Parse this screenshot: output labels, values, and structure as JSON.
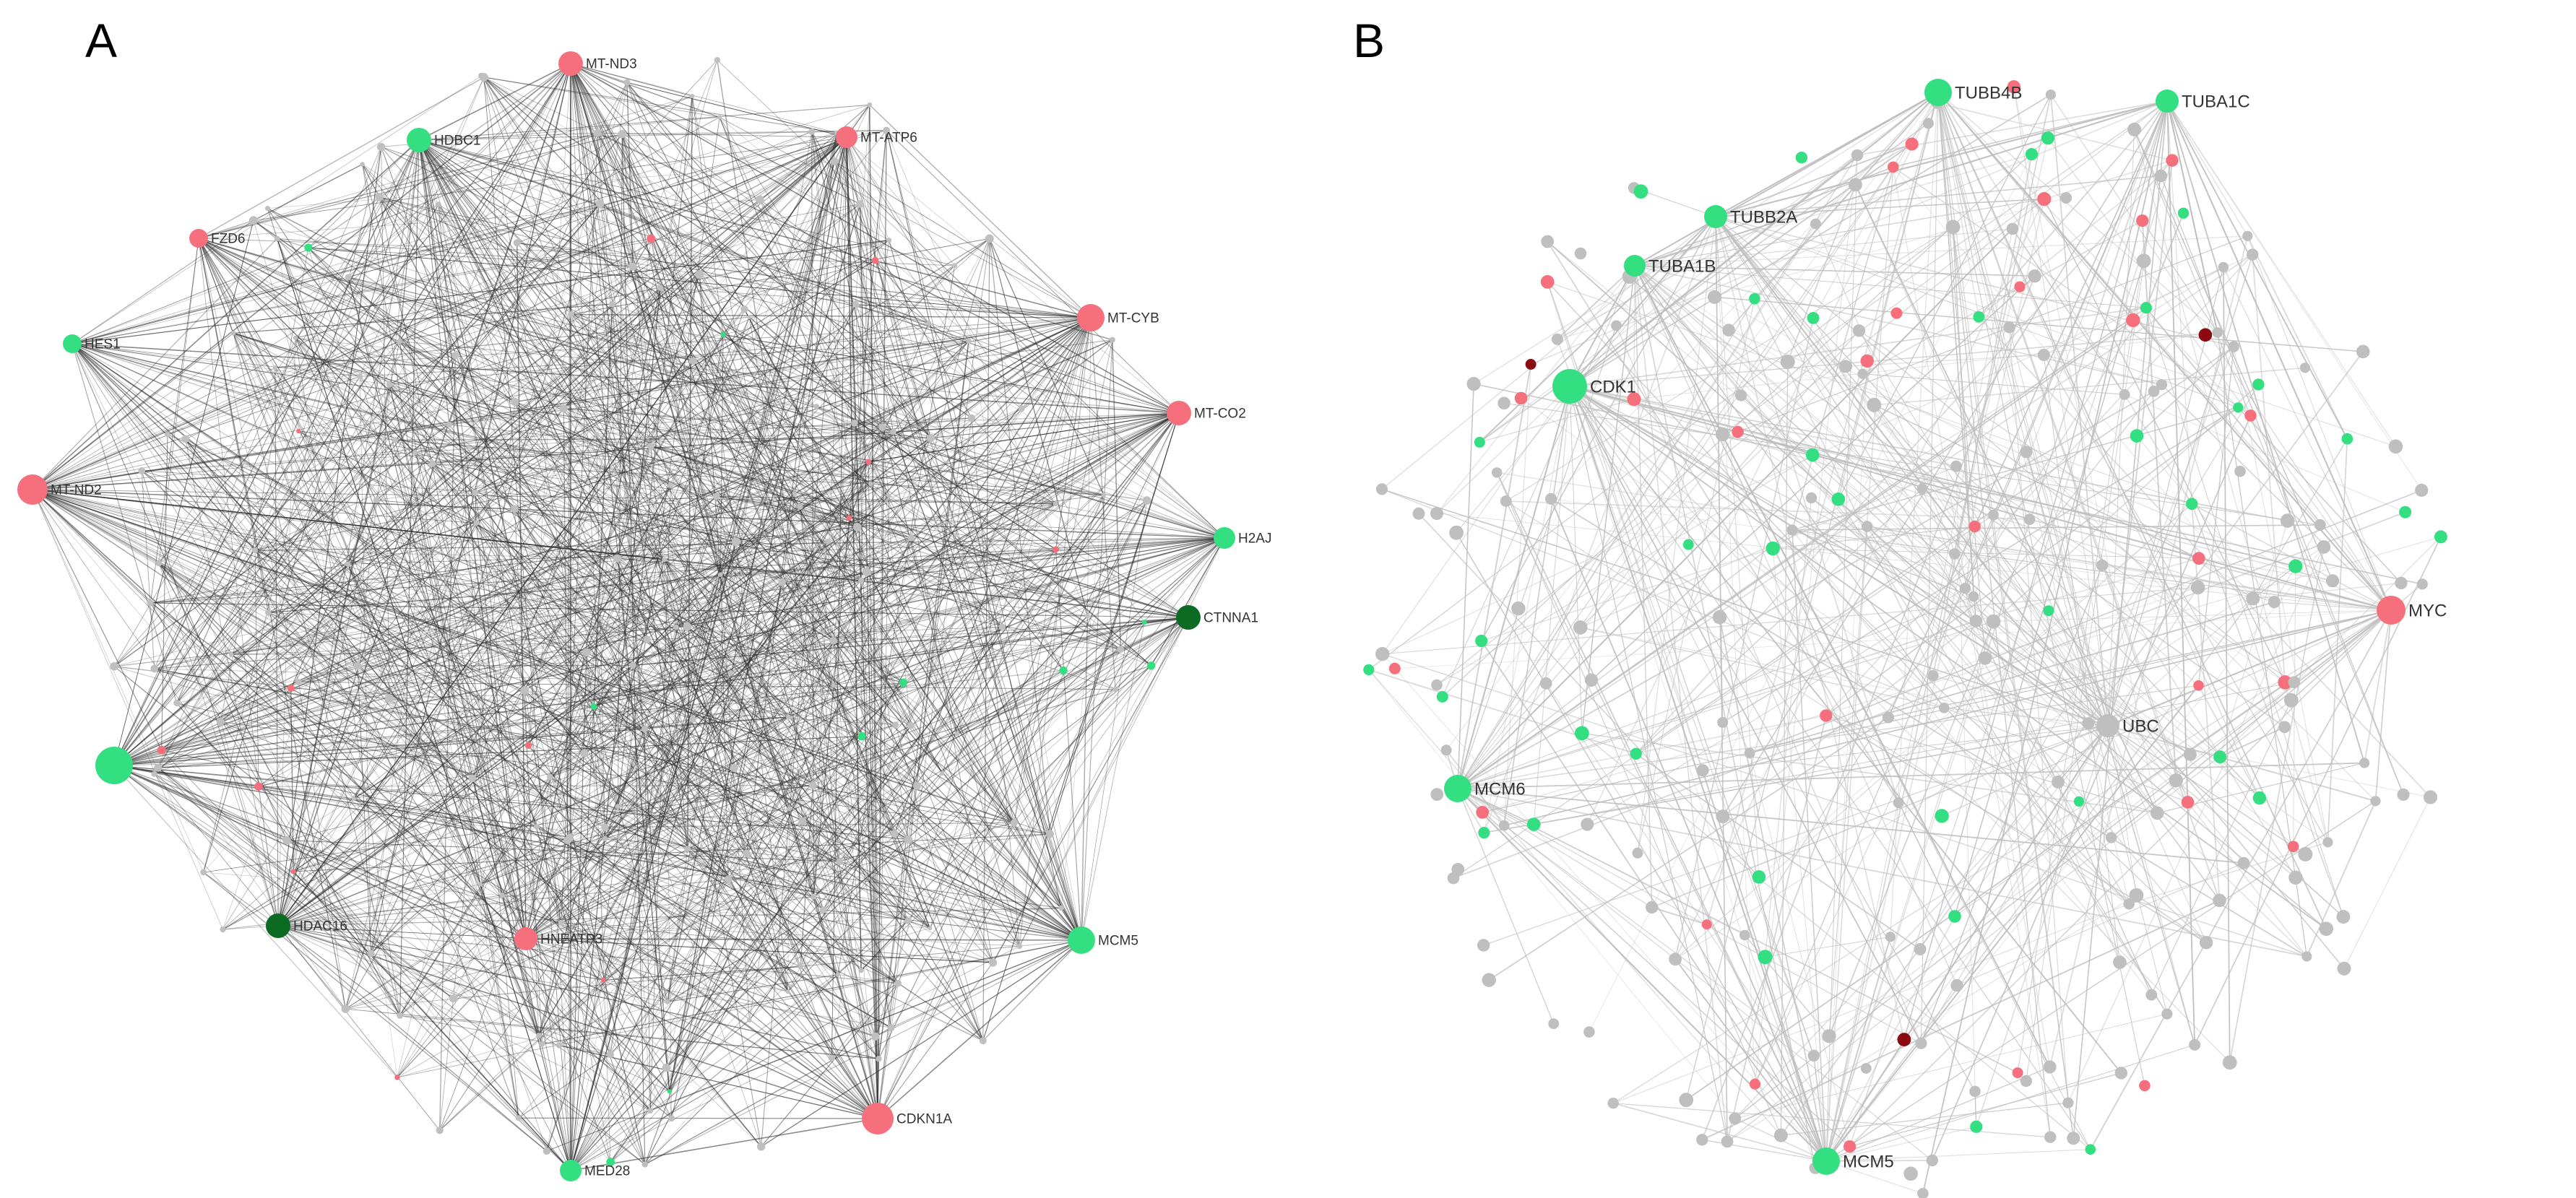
{
  "colors": {
    "up": "#f5707c",
    "down": "#34df82",
    "down_dark": "#0c6b22",
    "up_dark": "#8b0a10",
    "neutral": "#bfbfbf",
    "edge_a": "#2b2b2b",
    "edge_b": "#bdbdbd"
  },
  "panels": [
    {
      "letter": "A",
      "hubs": [
        {
          "label": "MT-ND3",
          "class": "up"
        },
        {
          "label": "HDBC1",
          "class": "down"
        },
        {
          "label": "MT-ATP6",
          "class": "up"
        },
        {
          "label": "FZD6",
          "class": "up"
        },
        {
          "label": "MT-CYB",
          "class": "up"
        },
        {
          "label": "HES1",
          "class": "down"
        },
        {
          "label": "MT-CO2",
          "class": "up"
        },
        {
          "label": "MT-ND2",
          "class": "up"
        },
        {
          "label": "H2AJ",
          "class": "down"
        },
        {
          "label": "CTNNA1",
          "class": "down_dark"
        },
        {
          "label": "",
          "class": "down"
        },
        {
          "label": "HDAC16",
          "class": "down_dark"
        },
        {
          "label": "HNEATP3",
          "class": "up"
        },
        {
          "label": "MCM5",
          "class": "down"
        },
        {
          "label": "CDKN1A",
          "class": "up"
        },
        {
          "label": "MED28",
          "class": "down"
        }
      ]
    },
    {
      "letter": "B",
      "hubs": [
        {
          "label": "TUBB4B",
          "class": "down"
        },
        {
          "label": "TUBA1C",
          "class": "down"
        },
        {
          "label": "TUBB2A",
          "class": "down"
        },
        {
          "label": "TUBA1B",
          "class": "down"
        },
        {
          "label": "CDK1",
          "class": "down"
        },
        {
          "label": "MYC",
          "class": "up"
        },
        {
          "label": "UBC",
          "class": "neutral"
        },
        {
          "label": "MCM6",
          "class": "down"
        },
        {
          "label": "MCM5",
          "class": "down"
        }
      ]
    }
  ]
}
